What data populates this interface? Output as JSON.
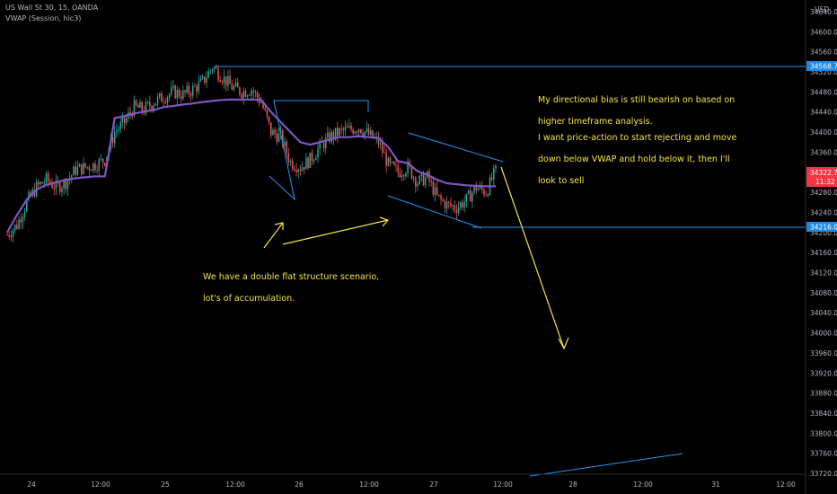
{
  "header": {
    "symbol": "US Wall St 30, 15, OANDA",
    "indicator": "VWAP (Session, hlc3)"
  },
  "annotations": {
    "bias_line1": "My directional bias is still bearish on based on",
    "bias_line2": "higher timeframe analysis.",
    "plan_line1": "I want price-action to start rejecting and move",
    "plan_line2": "down below VWAP and hold below it, then I'll",
    "plan_line3": "look to sell",
    "structure_line1": "We have a double flat structure scenario,",
    "structure_line2": "lot's of accumulation."
  },
  "colors": {
    "background": "#000000",
    "up_candle": "#26a69a",
    "down_candle": "#ef5350",
    "vwap": "#7e57c2",
    "drawing_lines": "#2196f3",
    "arrows": "#f5e642",
    "price_tag": "#f23645",
    "level_tag": "#1e88e5"
  },
  "chart_data": {
    "type": "line",
    "title": "US Wall St 30, 15, OANDA",
    "currency_label": "USD",
    "ylim": [
      33720,
      34640
    ],
    "y_ticks": [
      34640,
      34600,
      34560,
      34520,
      34480,
      34440,
      34400,
      34360,
      34320,
      34280,
      34240,
      34200,
      34160,
      34120,
      34080,
      34040,
      34000,
      33960,
      33920,
      33880,
      33840,
      33800,
      33760,
      33720
    ],
    "y_tick_labels": [
      "34640.0",
      "34600.0",
      "34560.0",
      "34520.0",
      "34480.0",
      "34440.0",
      "34400.0",
      "34360.0",
      "34320.0",
      "34280.0",
      "34240.0",
      "34200.0",
      "34160.0",
      "34120.0",
      "34080.0",
      "34040.0",
      "34000.0",
      "33960.0",
      "33920.0",
      "33880.0",
      "33840.0",
      "33800.0",
      "33760.0",
      "33720.0"
    ],
    "x_ticks": [
      "24",
      "12:00",
      "25",
      "12:00",
      "26",
      "12:00",
      "27",
      "12:00",
      "28",
      "12:00",
      "31",
      "12:00"
    ],
    "price_labels": {
      "resistance": "34568.7",
      "current": "34322.7",
      "countdown": "11:32",
      "support": "34216.0"
    },
    "levels": [
      34568.7,
      34216.0
    ],
    "series": [
      {
        "name": "Price",
        "values": [
          34195,
          34215,
          34260,
          34290,
          34305,
          34290,
          34300,
          34325,
          34330,
          34335,
          34345,
          34400,
          34420,
          34450,
          34445,
          34460,
          34470,
          34480,
          34475,
          34485,
          34500,
          34530,
          34510,
          34490,
          34480,
          34485,
          34460,
          34400,
          34390,
          34340,
          34330,
          34345,
          34370,
          34390,
          34400,
          34405,
          34410,
          34395,
          34380,
          34335,
          34320,
          34330,
          34300,
          34310,
          34270,
          34255,
          34250,
          34265,
          34290,
          34280,
          34322.7
        ]
      },
      {
        "name": "VWAP (Session, hlc3)",
        "values": [
          34200,
          34235,
          34265,
          34285,
          34295,
          34300,
          34305,
          34308,
          34310,
          34312,
          34312,
          34428,
          34432,
          34437,
          34441,
          34444,
          34450,
          34452,
          34455,
          34457,
          34460,
          34462,
          34464,
          34465,
          34465,
          34465,
          34464,
          34440,
          34420,
          34400,
          34380,
          34375,
          34380,
          34385,
          34390,
          34390,
          34392,
          34390,
          34388,
          34370,
          34342,
          34338,
          34322,
          34315,
          34305,
          34298,
          34296,
          34294,
          34293,
          34292,
          34292
        ]
      }
    ],
    "grid": false,
    "legend": "top-left"
  }
}
